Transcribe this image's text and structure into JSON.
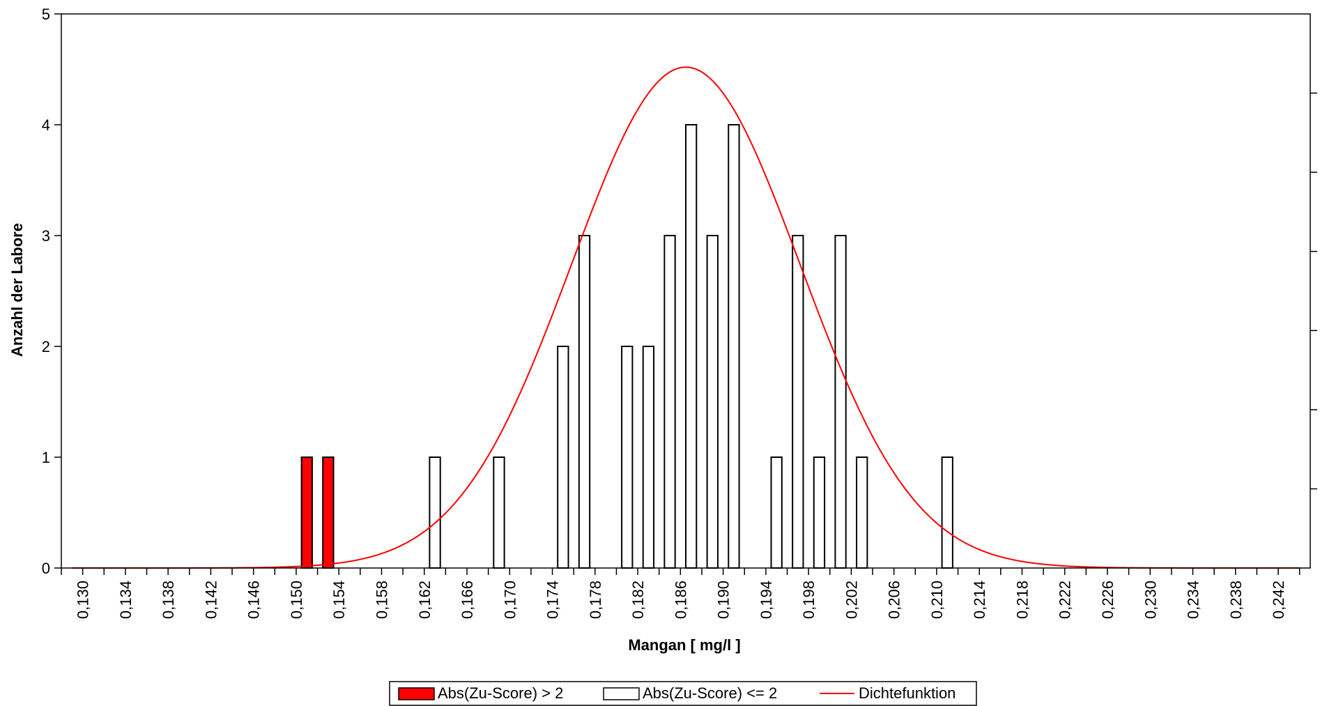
{
  "chart_data": {
    "type": "bar",
    "title": "",
    "xlabel": "Mangan [ mg/l ]",
    "ylabel": "Anzahl der Labore",
    "ylim": [
      0,
      5
    ],
    "y_ticks": [
      0,
      1,
      2,
      3,
      4,
      5
    ],
    "x_range": [
      0.128,
      0.245
    ],
    "x_ticks": [
      "0,130",
      "0,134",
      "0,138",
      "0,142",
      "0,146",
      "0,150",
      "0,154",
      "0,158",
      "0,162",
      "0,166",
      "0,170",
      "0,174",
      "0,178",
      "0,182",
      "0,186",
      "0,190",
      "0,194",
      "0,198",
      "0,202",
      "0,206",
      "0,210",
      "0,214",
      "0,218",
      "0,222",
      "0,226",
      "0,230",
      "0,234",
      "0,238",
      "0,242"
    ],
    "x_tick_values": [
      0.13,
      0.134,
      0.138,
      0.142,
      0.146,
      0.15,
      0.154,
      0.158,
      0.162,
      0.166,
      0.17,
      0.174,
      0.178,
      0.182,
      0.186,
      0.19,
      0.194,
      0.198,
      0.202,
      0.206,
      0.21,
      0.214,
      0.218,
      0.222,
      0.226,
      0.23,
      0.234,
      0.238,
      0.242
    ],
    "grid": false,
    "legend_position": "bottom",
    "series": [
      {
        "name": "Abs(Zu-Score) > 2",
        "type": "bar",
        "color": "#ff0000",
        "points": [
          {
            "x": 0.151,
            "y": 1
          },
          {
            "x": 0.153,
            "y": 1
          }
        ]
      },
      {
        "name": "Abs(Zu-Score) <= 2",
        "type": "bar",
        "color": "#ffffff",
        "points": [
          {
            "x": 0.163,
            "y": 1
          },
          {
            "x": 0.169,
            "y": 1
          },
          {
            "x": 0.175,
            "y": 2
          },
          {
            "x": 0.177,
            "y": 3
          },
          {
            "x": 0.181,
            "y": 2
          },
          {
            "x": 0.183,
            "y": 2
          },
          {
            "x": 0.185,
            "y": 3
          },
          {
            "x": 0.187,
            "y": 4
          },
          {
            "x": 0.189,
            "y": 3
          },
          {
            "x": 0.191,
            "y": 4
          },
          {
            "x": 0.195,
            "y": 1
          },
          {
            "x": 0.197,
            "y": 3
          },
          {
            "x": 0.199,
            "y": 1
          },
          {
            "x": 0.201,
            "y": 3
          },
          {
            "x": 0.203,
            "y": 1
          },
          {
            "x": 0.211,
            "y": 1
          }
        ]
      },
      {
        "name": "Dichtefunktion",
        "type": "line",
        "color": "#ff0000",
        "peak_x": 0.1865,
        "peak_y": 4.52,
        "sd": 0.0107,
        "x_start": 0.129,
        "x_end": 0.244
      }
    ]
  }
}
